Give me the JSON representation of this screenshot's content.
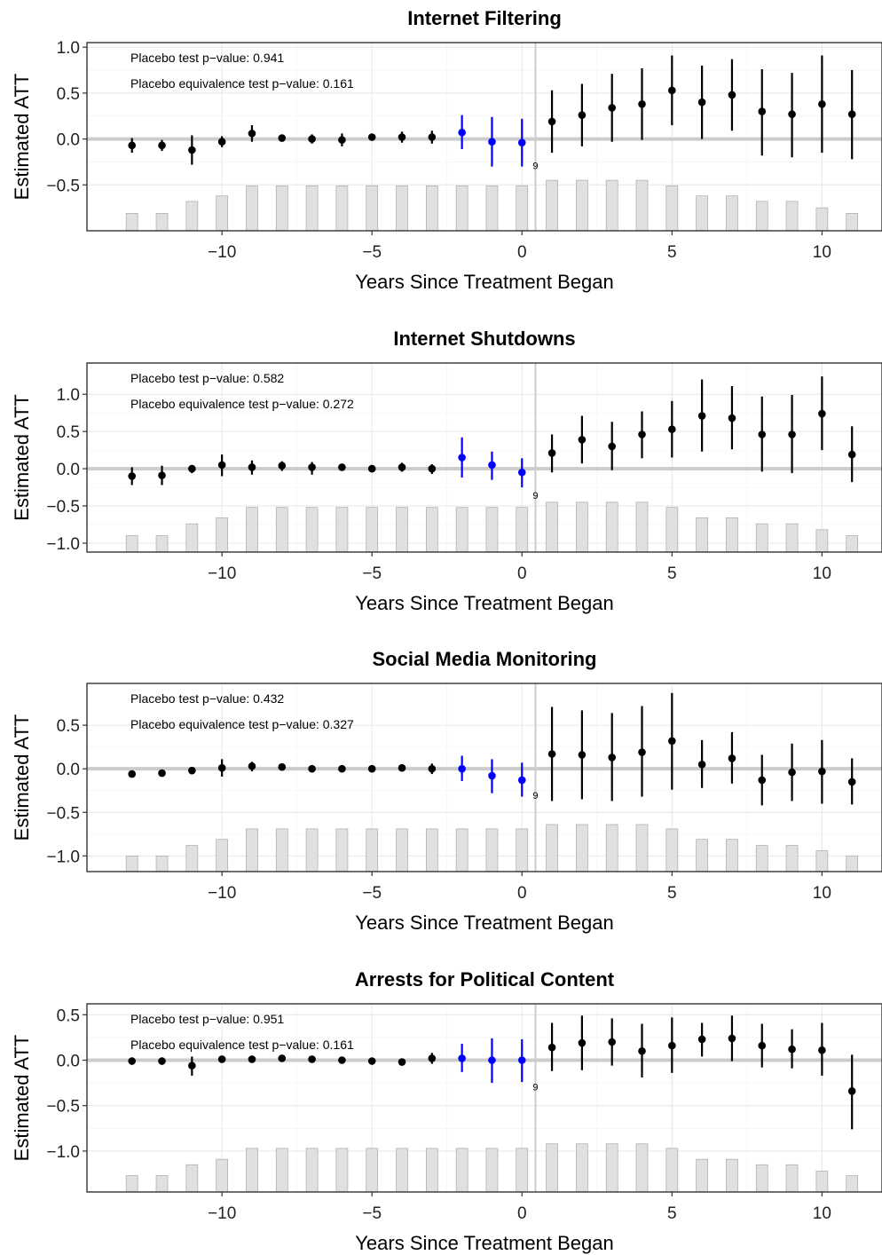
{
  "chart_data": [
    {
      "type": "scatter",
      "title": "Internet Filtering",
      "xlabel": "Years Since Treatment Began",
      "ylabel": "Estimated ATT",
      "xlim": [
        -14.5,
        12
      ],
      "ylim": [
        -1.0,
        1.05
      ],
      "yticks": [
        -0.5,
        0.0,
        0.5,
        1.0
      ],
      "ytick_labels": [
        "-0.5",
        "0.0",
        "0.5",
        "1.0"
      ],
      "xticks": [
        -10,
        -5,
        0,
        5,
        10
      ],
      "xtick_labels": [
        "−10",
        "−5",
        "0",
        "5",
        "10"
      ],
      "grid": true,
      "placebo_p_label": "Placebo test p−value: 0.941",
      "equiv_p_label": "Placebo equivalence test p−value: 0.161",
      "zero_label": "9",
      "x": [
        -13,
        -12,
        -11,
        -10,
        -9,
        -8,
        -7,
        -6,
        -5,
        -4,
        -3,
        -2,
        -1,
        0,
        1,
        2,
        3,
        4,
        5,
        6,
        7,
        8,
        9,
        10,
        11
      ],
      "att": [
        -0.07,
        -0.07,
        -0.12,
        -0.03,
        0.06,
        0.01,
        0.0,
        -0.01,
        0.02,
        0.02,
        0.02,
        0.07,
        -0.03,
        -0.04,
        0.19,
        0.26,
        0.34,
        0.38,
        0.53,
        0.4,
        0.48,
        0.3,
        0.27,
        0.38,
        0.27
      ],
      "ci_lower": [
        -0.15,
        -0.13,
        -0.28,
        -0.09,
        -0.03,
        -0.02,
        -0.05,
        -0.08,
        0.0,
        -0.04,
        -0.05,
        -0.11,
        -0.3,
        -0.3,
        -0.15,
        -0.08,
        -0.03,
        -0.01,
        0.15,
        0.0,
        0.09,
        -0.18,
        -0.2,
        -0.15,
        -0.22
      ],
      "ci_upper": [
        0.01,
        -0.01,
        0.04,
        0.03,
        0.15,
        0.04,
        0.05,
        0.06,
        0.04,
        0.08,
        0.09,
        0.26,
        0.24,
        0.22,
        0.53,
        0.6,
        0.71,
        0.77,
        0.91,
        0.8,
        0.87,
        0.76,
        0.72,
        0.91,
        0.75
      ],
      "highlight_x": [
        -2,
        -1,
        0
      ],
      "bar_heights": [
        0.19,
        0.19,
        0.32,
        0.38,
        0.49,
        0.49,
        0.49,
        0.49,
        0.49,
        0.49,
        0.49,
        0.49,
        0.49,
        0.49,
        0.55,
        0.55,
        0.55,
        0.55,
        0.49,
        0.38,
        0.38,
        0.32,
        0.32,
        0.25,
        0.19
      ],
      "colors": {
        "point": "#000000",
        "highlight": "#0000ff",
        "bar_fill": "#e0e0e0",
        "bar_stroke": "#aaaaaa",
        "zero_line": "#cccccc"
      }
    },
    {
      "type": "scatter",
      "title": "Internet Shutdowns",
      "xlabel": "Years Since Treatment Began",
      "ylabel": "Estimated ATT",
      "xlim": [
        -14.5,
        12
      ],
      "ylim": [
        -1.12,
        1.42
      ],
      "yticks": [
        -1.0,
        -0.5,
        0.0,
        0.5,
        1.0
      ],
      "ytick_labels": [
        "-1.0",
        "-0.5",
        "0.0",
        "0.5",
        "1.0"
      ],
      "xticks": [
        -10,
        -5,
        0,
        5,
        10
      ],
      "xtick_labels": [
        "−10",
        "−5",
        "0",
        "5",
        "10"
      ],
      "grid": true,
      "placebo_p_label": "Placebo test p−value: 0.582",
      "equiv_p_label": "Placebo equivalence test p−value: 0.272",
      "zero_label": "9",
      "x": [
        -13,
        -12,
        -11,
        -10,
        -9,
        -8,
        -7,
        -6,
        -5,
        -4,
        -3,
        -2,
        -1,
        0,
        1,
        2,
        3,
        4,
        5,
        6,
        7,
        8,
        9,
        10,
        11
      ],
      "att": [
        -0.1,
        -0.09,
        0.0,
        0.05,
        0.02,
        0.04,
        0.02,
        0.02,
        0.0,
        0.02,
        0.0,
        0.15,
        0.05,
        -0.05,
        0.21,
        0.39,
        0.3,
        0.46,
        0.53,
        0.71,
        0.68,
        0.46,
        0.46,
        0.74,
        0.19
      ],
      "ci_lower": [
        -0.22,
        -0.22,
        -0.06,
        -0.1,
        -0.08,
        -0.03,
        -0.08,
        0.0,
        -0.05,
        -0.04,
        -0.07,
        -0.12,
        -0.15,
        -0.25,
        -0.05,
        0.07,
        -0.02,
        0.14,
        0.15,
        0.23,
        0.26,
        -0.04,
        -0.06,
        0.25,
        -0.18
      ],
      "ci_upper": [
        0.02,
        0.04,
        0.05,
        0.19,
        0.11,
        0.1,
        0.09,
        0.04,
        0.05,
        0.08,
        0.06,
        0.42,
        0.23,
        0.14,
        0.46,
        0.71,
        0.63,
        0.77,
        0.91,
        1.2,
        1.11,
        0.97,
        0.99,
        1.24,
        0.57
      ],
      "highlight_x": [
        -2,
        -1,
        0
      ],
      "bar_heights": [
        0.22,
        0.22,
        0.38,
        0.46,
        0.6,
        0.6,
        0.6,
        0.6,
        0.6,
        0.6,
        0.6,
        0.6,
        0.6,
        0.6,
        0.67,
        0.67,
        0.67,
        0.67,
        0.6,
        0.46,
        0.46,
        0.38,
        0.38,
        0.3,
        0.22
      ],
      "colors": {
        "point": "#000000",
        "highlight": "#0000ff",
        "bar_fill": "#e0e0e0",
        "bar_stroke": "#aaaaaa",
        "zero_line": "#cccccc"
      }
    },
    {
      "type": "scatter",
      "title": "Social Media Monitoring",
      "xlabel": "Years Since Treatment Began",
      "ylabel": "Estimated ATT",
      "xlim": [
        -14.5,
        12
      ],
      "ylim": [
        -1.18,
        0.98
      ],
      "yticks": [
        -1.0,
        -0.5,
        0.0,
        0.5
      ],
      "ytick_labels": [
        "-1.0",
        "-0.5",
        "0.0",
        "0.5"
      ],
      "xticks": [
        -10,
        -5,
        0,
        5,
        10
      ],
      "xtick_labels": [
        "−10",
        "−5",
        "0",
        "5",
        "10"
      ],
      "grid": true,
      "placebo_p_label": "Placebo test p−value: 0.432",
      "equiv_p_label": "Placebo equivalence test p−value: 0.327",
      "zero_label": "9",
      "x": [
        -13,
        -12,
        -11,
        -10,
        -9,
        -8,
        -7,
        -6,
        -5,
        -4,
        -3,
        -2,
        -1,
        0,
        1,
        2,
        3,
        4,
        5,
        6,
        7,
        8,
        9,
        10,
        11
      ],
      "att": [
        -0.06,
        -0.05,
        -0.02,
        0.01,
        0.03,
        0.02,
        0.0,
        0.0,
        0.0,
        0.01,
        0.0,
        0.0,
        -0.08,
        -0.13,
        0.17,
        0.16,
        0.13,
        0.19,
        0.32,
        0.05,
        0.12,
        -0.13,
        -0.04,
        -0.03,
        -0.15
      ],
      "ci_lower": [
        -0.09,
        -0.09,
        -0.06,
        -0.09,
        -0.03,
        -0.01,
        -0.03,
        -0.03,
        -0.04,
        -0.03,
        -0.06,
        -0.14,
        -0.28,
        -0.32,
        -0.37,
        -0.35,
        -0.37,
        -0.32,
        -0.24,
        -0.22,
        -0.17,
        -0.42,
        -0.37,
        -0.4,
        -0.41
      ],
      "ci_upper": [
        -0.03,
        -0.02,
        0.01,
        0.11,
        0.08,
        0.05,
        0.03,
        0.03,
        0.04,
        0.05,
        0.06,
        0.15,
        0.11,
        0.07,
        0.71,
        0.67,
        0.64,
        0.72,
        0.87,
        0.33,
        0.42,
        0.16,
        0.29,
        0.33,
        0.12
      ],
      "highlight_x": [
        -2,
        -1,
        0
      ],
      "bar_heights": [
        0.18,
        0.18,
        0.3,
        0.37,
        0.49,
        0.49,
        0.49,
        0.49,
        0.49,
        0.49,
        0.49,
        0.49,
        0.49,
        0.49,
        0.54,
        0.54,
        0.54,
        0.54,
        0.49,
        0.37,
        0.37,
        0.3,
        0.3,
        0.24,
        0.18
      ],
      "colors": {
        "point": "#000000",
        "highlight": "#0000ff",
        "bar_fill": "#e0e0e0",
        "bar_stroke": "#aaaaaa",
        "zero_line": "#cccccc"
      }
    },
    {
      "type": "scatter",
      "title": "Arrests for Political Content",
      "xlabel": "Years Since Treatment Began",
      "ylabel": "Estimated ATT",
      "xlim": [
        -14.5,
        12
      ],
      "ylim": [
        -1.45,
        0.62
      ],
      "yticks": [
        -1.0,
        -0.5,
        0.0,
        0.5
      ],
      "ytick_labels": [
        "-1.0",
        "-0.5",
        "0.0",
        "0.5"
      ],
      "xticks": [
        -10,
        -5,
        0,
        5,
        10
      ],
      "xtick_labels": [
        "−10",
        "−5",
        "0",
        "5",
        "10"
      ],
      "grid": true,
      "placebo_p_label": "Placebo test p−value: 0.951",
      "equiv_p_label": "Placebo equivalence test p−value: 0.161",
      "zero_label": "9",
      "x": [
        -13,
        -12,
        -11,
        -10,
        -9,
        -8,
        -7,
        -6,
        -5,
        -4,
        -3,
        -2,
        -1,
        0,
        1,
        2,
        3,
        4,
        5,
        6,
        7,
        8,
        9,
        10,
        11
      ],
      "att": [
        -0.01,
        -0.01,
        -0.06,
        0.01,
        0.01,
        0.02,
        0.01,
        0.0,
        -0.01,
        -0.02,
        0.02,
        0.02,
        0.0,
        0.0,
        0.14,
        0.19,
        0.2,
        0.1,
        0.16,
        0.23,
        0.24,
        0.16,
        0.12,
        0.11,
        -0.34
      ],
      "ci_lower": [
        -0.05,
        -0.05,
        -0.17,
        -0.02,
        -0.02,
        -0.01,
        -0.02,
        -0.02,
        -0.03,
        -0.05,
        -0.04,
        -0.13,
        -0.25,
        -0.24,
        -0.12,
        -0.11,
        -0.06,
        -0.19,
        -0.14,
        0.04,
        -0.01,
        -0.08,
        -0.09,
        -0.17,
        -0.76
      ],
      "ci_upper": [
        0.03,
        0.03,
        0.04,
        0.04,
        0.04,
        0.05,
        0.04,
        0.02,
        0.01,
        0.01,
        0.08,
        0.18,
        0.24,
        0.23,
        0.41,
        0.49,
        0.46,
        0.4,
        0.47,
        0.41,
        0.49,
        0.4,
        0.34,
        0.41,
        0.06
      ],
      "highlight_x": [
        -2,
        -1,
        0
      ],
      "bar_heights": [
        0.18,
        0.18,
        0.3,
        0.36,
        0.48,
        0.48,
        0.48,
        0.48,
        0.48,
        0.48,
        0.48,
        0.48,
        0.48,
        0.48,
        0.53,
        0.53,
        0.53,
        0.53,
        0.48,
        0.36,
        0.36,
        0.3,
        0.3,
        0.23,
        0.18
      ],
      "colors": {
        "point": "#000000",
        "highlight": "#0000ff",
        "bar_fill": "#e0e0e0",
        "bar_stroke": "#aaaaaa",
        "zero_line": "#cccccc"
      }
    }
  ]
}
